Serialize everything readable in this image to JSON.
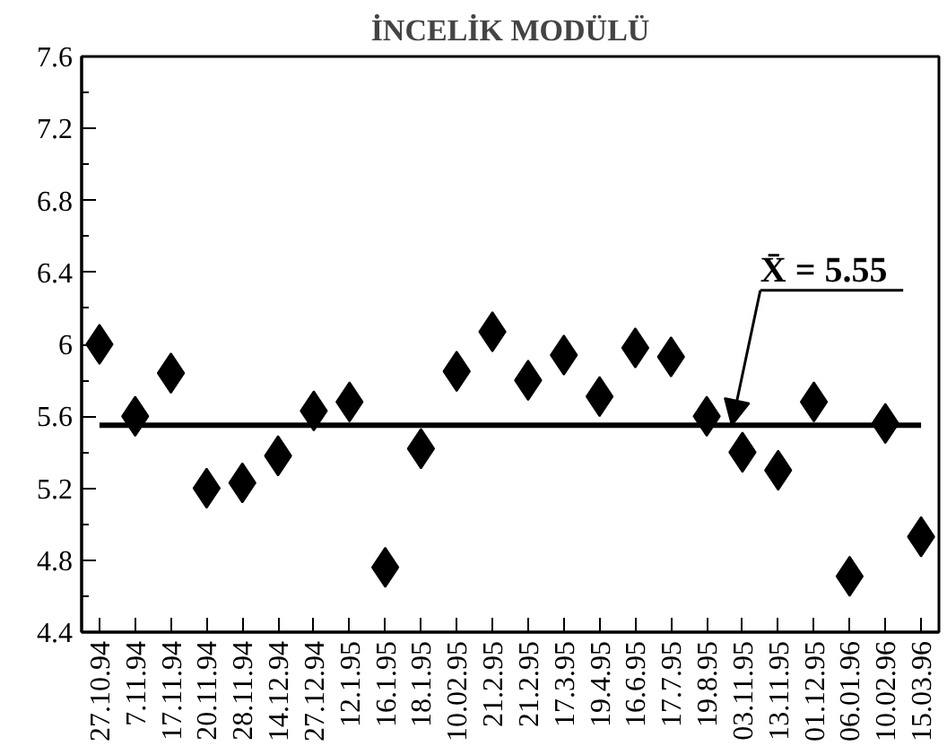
{
  "chart_data": {
    "type": "scatter",
    "title": "İNCELİK MODÜLÜ",
    "categories": [
      "27.10.94",
      "7.11.94",
      "17.11.94",
      "20.11.94",
      "28.11.94",
      "14.12.94",
      "27.12.94",
      "12.1.95",
      "16.1.95",
      "18.1.95",
      "10.02.95",
      "21.2.95",
      "21.2.95",
      "17.3.95",
      "19.4.95",
      "16.6.95",
      "17.7.95",
      "19.8.95",
      "03.11.95",
      "13.11.95",
      "01.12.95",
      "06.01.96",
      "10.02.96",
      "15.03.96"
    ],
    "values": [
      6.0,
      5.6,
      5.84,
      5.2,
      5.23,
      5.38,
      5.63,
      5.68,
      4.76,
      5.42,
      5.85,
      6.07,
      5.8,
      5.94,
      5.71,
      5.98,
      5.93,
      5.6,
      5.4,
      5.3,
      5.68,
      4.71,
      5.56,
      4.93
    ],
    "color": "#000000",
    "marker": "diamond",
    "ylim": [
      4.4,
      7.6
    ],
    "yticks": [
      4.4,
      4.8,
      5.2,
      5.6,
      6,
      6.4,
      6.8,
      7.2,
      7.6
    ],
    "ref_lines": [
      {
        "axis": "y",
        "value": 5.55,
        "label": "X̄ = 5.55",
        "color": "#000000"
      }
    ]
  }
}
